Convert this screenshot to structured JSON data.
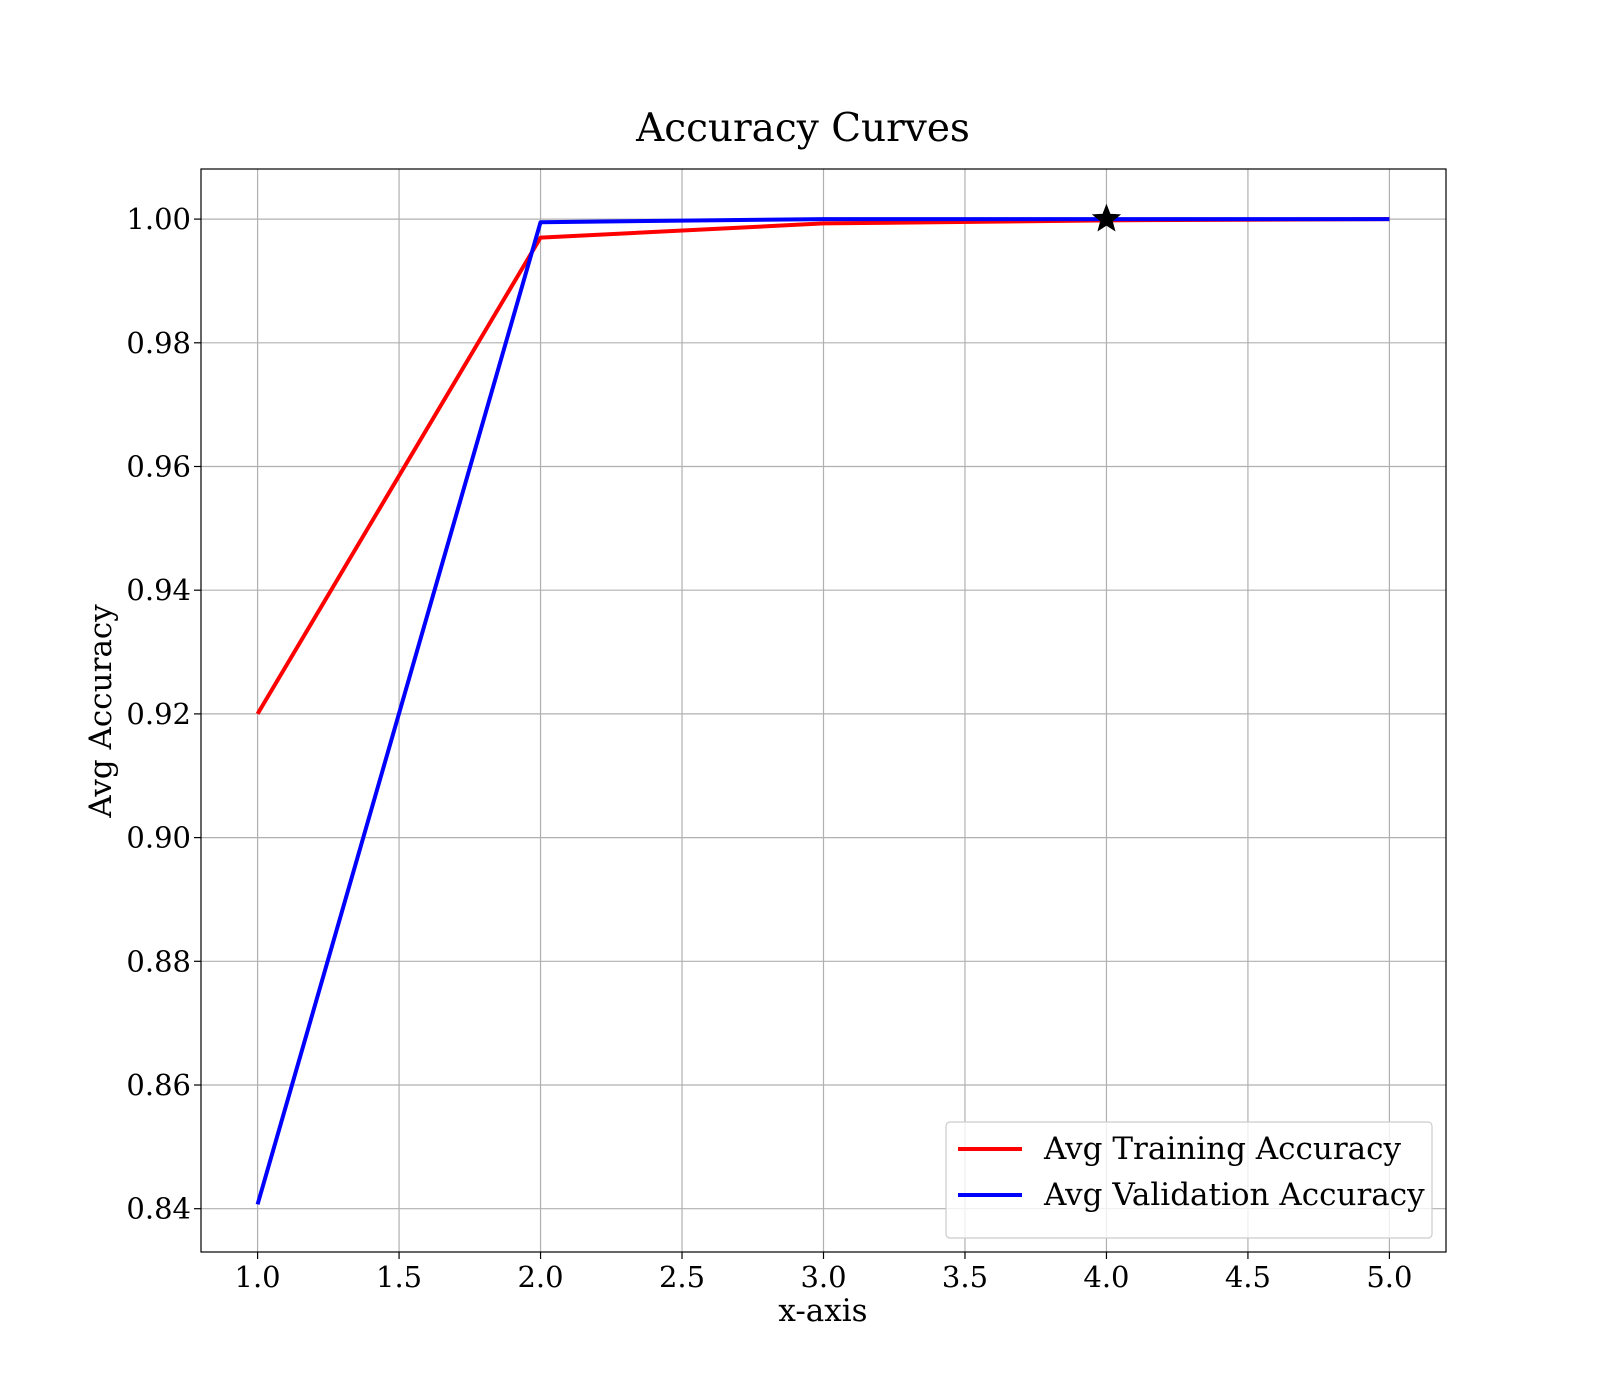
{
  "chart_data": {
    "type": "line",
    "title": "Accuracy Curves",
    "xlabel": "x-axis",
    "ylabel": "Avg Accuracy",
    "xlim": [
      0.8,
      5.2
    ],
    "ylim": [
      0.833,
      1.0081
    ],
    "x_ticks": [
      1.0,
      1.5,
      2.0,
      2.5,
      3.0,
      3.5,
      4.0,
      4.5,
      5.0
    ],
    "x_tick_labels": [
      "1.0",
      "1.5",
      "2.0",
      "2.5",
      "3.0",
      "3.5",
      "4.0",
      "4.5",
      "5.0"
    ],
    "y_ticks": [
      0.84,
      0.86,
      0.88,
      0.9,
      0.92,
      0.94,
      0.96,
      0.98,
      1.0
    ],
    "y_tick_labels": [
      "0.84",
      "0.86",
      "0.88",
      "0.90",
      "0.92",
      "0.94",
      "0.96",
      "0.98",
      "1.00"
    ],
    "grid": true,
    "legend_position": "lower-right",
    "x": [
      1,
      2,
      3,
      4,
      5
    ],
    "series": [
      {
        "name": "Avg Training Accuracy",
        "color": "#ff0000",
        "values": [
          0.92,
          0.997,
          0.9993,
          0.9998,
          1.0
        ]
      },
      {
        "name": "Avg Validation Accuracy",
        "color": "#0000ff",
        "values": [
          0.8407,
          0.9995,
          1.0,
          1.0,
          1.0
        ]
      }
    ],
    "markers": [
      {
        "shape": "star",
        "color": "#000000",
        "x": 4,
        "y": 1.0
      }
    ]
  }
}
